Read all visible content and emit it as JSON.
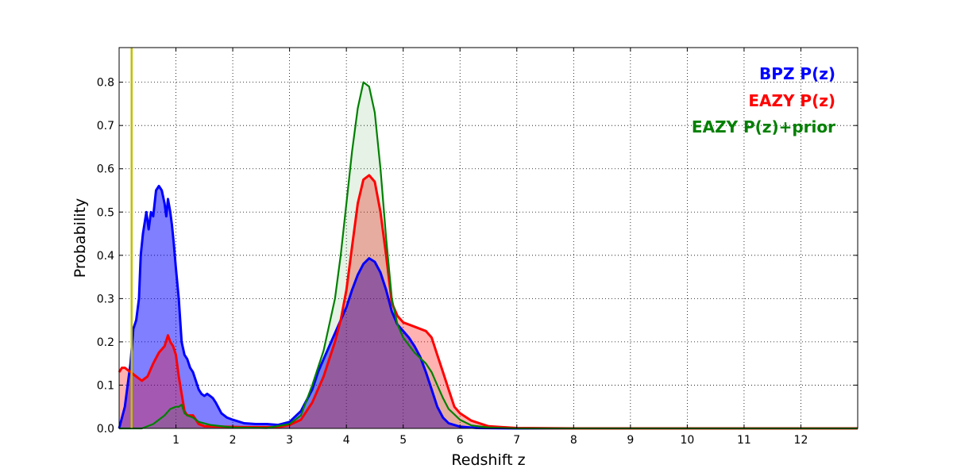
{
  "chart_data": {
    "type": "area",
    "title": "",
    "xlabel": "Redshift z",
    "ylabel": "Probability",
    "xlim": [
      0,
      13
    ],
    "ylim": [
      0,
      0.88
    ],
    "x_ticks": [
      1,
      2,
      3,
      4,
      5,
      6,
      7,
      8,
      9,
      10,
      11,
      12
    ],
    "y_ticks": [
      0.0,
      0.1,
      0.2,
      0.3,
      0.4,
      0.5,
      0.6,
      0.7,
      0.8
    ],
    "grid": true,
    "legend_position": "top-right",
    "reference_line": {
      "x": 0.22,
      "color": "#bfbf00"
    },
    "series": [
      {
        "name": "BPZ P(z)",
        "color": "#0000ff",
        "fill": "#0000ff",
        "fill_opacity": 0.5,
        "points": [
          [
            0.0,
            0.0
          ],
          [
            0.1,
            0.05
          ],
          [
            0.2,
            0.15
          ],
          [
            0.25,
            0.23
          ],
          [
            0.3,
            0.25
          ],
          [
            0.35,
            0.3
          ],
          [
            0.38,
            0.4
          ],
          [
            0.42,
            0.45
          ],
          [
            0.48,
            0.5
          ],
          [
            0.52,
            0.46
          ],
          [
            0.56,
            0.5
          ],
          [
            0.6,
            0.49
          ],
          [
            0.65,
            0.55
          ],
          [
            0.7,
            0.56
          ],
          [
            0.75,
            0.55
          ],
          [
            0.8,
            0.52
          ],
          [
            0.83,
            0.49
          ],
          [
            0.86,
            0.53
          ],
          [
            0.9,
            0.5
          ],
          [
            0.93,
            0.47
          ],
          [
            0.96,
            0.43
          ],
          [
            1.0,
            0.37
          ],
          [
            1.05,
            0.3
          ],
          [
            1.1,
            0.2
          ],
          [
            1.15,
            0.17
          ],
          [
            1.2,
            0.16
          ],
          [
            1.25,
            0.14
          ],
          [
            1.3,
            0.13
          ],
          [
            1.35,
            0.11
          ],
          [
            1.4,
            0.09
          ],
          [
            1.45,
            0.08
          ],
          [
            1.5,
            0.075
          ],
          [
            1.55,
            0.08
          ],
          [
            1.6,
            0.075
          ],
          [
            1.65,
            0.07
          ],
          [
            1.7,
            0.06
          ],
          [
            1.8,
            0.035
          ],
          [
            1.9,
            0.025
          ],
          [
            2.0,
            0.02
          ],
          [
            2.2,
            0.012
          ],
          [
            2.4,
            0.01
          ],
          [
            2.6,
            0.01
          ],
          [
            2.8,
            0.008
          ],
          [
            3.0,
            0.015
          ],
          [
            3.2,
            0.04
          ],
          [
            3.4,
            0.09
          ],
          [
            3.5,
            0.13
          ],
          [
            3.6,
            0.16
          ],
          [
            3.8,
            0.22
          ],
          [
            4.0,
            0.28
          ],
          [
            4.1,
            0.32
          ],
          [
            4.2,
            0.355
          ],
          [
            4.3,
            0.38
          ],
          [
            4.4,
            0.393
          ],
          [
            4.5,
            0.385
          ],
          [
            4.6,
            0.36
          ],
          [
            4.7,
            0.32
          ],
          [
            4.8,
            0.27
          ],
          [
            4.9,
            0.24
          ],
          [
            5.0,
            0.225
          ],
          [
            5.1,
            0.21
          ],
          [
            5.2,
            0.19
          ],
          [
            5.3,
            0.165
          ],
          [
            5.4,
            0.13
          ],
          [
            5.5,
            0.09
          ],
          [
            5.6,
            0.05
          ],
          [
            5.7,
            0.025
          ],
          [
            5.8,
            0.012
          ],
          [
            6.0,
            0.004
          ],
          [
            6.3,
            0.001
          ],
          [
            7.0,
            0.0
          ],
          [
            13.0,
            0.0
          ]
        ]
      },
      {
        "name": "EAZY P(z)",
        "color": "#ff0000",
        "fill": "#ff0000",
        "fill_opacity": 0.3,
        "points": [
          [
            0.0,
            0.13
          ],
          [
            0.05,
            0.14
          ],
          [
            0.1,
            0.14
          ],
          [
            0.2,
            0.13
          ],
          [
            0.3,
            0.12
          ],
          [
            0.4,
            0.11
          ],
          [
            0.5,
            0.12
          ],
          [
            0.6,
            0.15
          ],
          [
            0.7,
            0.175
          ],
          [
            0.8,
            0.19
          ],
          [
            0.86,
            0.215
          ],
          [
            0.9,
            0.2
          ],
          [
            0.95,
            0.19
          ],
          [
            1.0,
            0.17
          ],
          [
            1.05,
            0.12
          ],
          [
            1.1,
            0.08
          ],
          [
            1.15,
            0.04
          ],
          [
            1.2,
            0.03
          ],
          [
            1.3,
            0.03
          ],
          [
            1.4,
            0.01
          ],
          [
            1.5,
            0.005
          ],
          [
            1.8,
            0.004
          ],
          [
            2.2,
            0.003
          ],
          [
            2.8,
            0.003
          ],
          [
            3.0,
            0.008
          ],
          [
            3.2,
            0.02
          ],
          [
            3.4,
            0.06
          ],
          [
            3.6,
            0.12
          ],
          [
            3.8,
            0.2
          ],
          [
            3.9,
            0.25
          ],
          [
            4.0,
            0.32
          ],
          [
            4.1,
            0.42
          ],
          [
            4.2,
            0.52
          ],
          [
            4.3,
            0.575
          ],
          [
            4.4,
            0.585
          ],
          [
            4.5,
            0.57
          ],
          [
            4.6,
            0.5
          ],
          [
            4.7,
            0.4
          ],
          [
            4.8,
            0.29
          ],
          [
            4.9,
            0.26
          ],
          [
            5.0,
            0.245
          ],
          [
            5.2,
            0.235
          ],
          [
            5.4,
            0.225
          ],
          [
            5.5,
            0.21
          ],
          [
            5.6,
            0.17
          ],
          [
            5.7,
            0.13
          ],
          [
            5.8,
            0.09
          ],
          [
            5.9,
            0.05
          ],
          [
            6.0,
            0.035
          ],
          [
            6.2,
            0.018
          ],
          [
            6.5,
            0.005
          ],
          [
            7.0,
            0.001
          ],
          [
            8.0,
            0.0
          ],
          [
            13.0,
            0.0
          ]
        ]
      },
      {
        "name": "EAZY P(z)+prior",
        "color": "#008000",
        "fill": "#008000",
        "fill_opacity": 0.1,
        "points": [
          [
            0.0,
            0.0
          ],
          [
            0.4,
            0.0
          ],
          [
            0.6,
            0.01
          ],
          [
            0.8,
            0.03
          ],
          [
            0.9,
            0.045
          ],
          [
            1.0,
            0.05
          ],
          [
            1.05,
            0.05
          ],
          [
            1.1,
            0.055
          ],
          [
            1.15,
            0.035
          ],
          [
            1.2,
            0.03
          ],
          [
            1.3,
            0.025
          ],
          [
            1.4,
            0.015
          ],
          [
            1.6,
            0.008
          ],
          [
            2.0,
            0.002
          ],
          [
            2.6,
            0.001
          ],
          [
            3.0,
            0.01
          ],
          [
            3.2,
            0.03
          ],
          [
            3.4,
            0.1
          ],
          [
            3.6,
            0.18
          ],
          [
            3.8,
            0.3
          ],
          [
            3.9,
            0.4
          ],
          [
            4.0,
            0.52
          ],
          [
            4.1,
            0.64
          ],
          [
            4.2,
            0.74
          ],
          [
            4.3,
            0.8
          ],
          [
            4.4,
            0.79
          ],
          [
            4.5,
            0.73
          ],
          [
            4.6,
            0.6
          ],
          [
            4.7,
            0.44
          ],
          [
            4.8,
            0.3
          ],
          [
            4.9,
            0.24
          ],
          [
            5.0,
            0.21
          ],
          [
            5.2,
            0.175
          ],
          [
            5.4,
            0.15
          ],
          [
            5.5,
            0.13
          ],
          [
            5.6,
            0.1
          ],
          [
            5.7,
            0.07
          ],
          [
            5.8,
            0.045
          ],
          [
            6.0,
            0.02
          ],
          [
            6.2,
            0.007
          ],
          [
            6.5,
            0.002
          ],
          [
            7.0,
            0.0
          ],
          [
            13.0,
            0.0
          ]
        ]
      }
    ]
  }
}
